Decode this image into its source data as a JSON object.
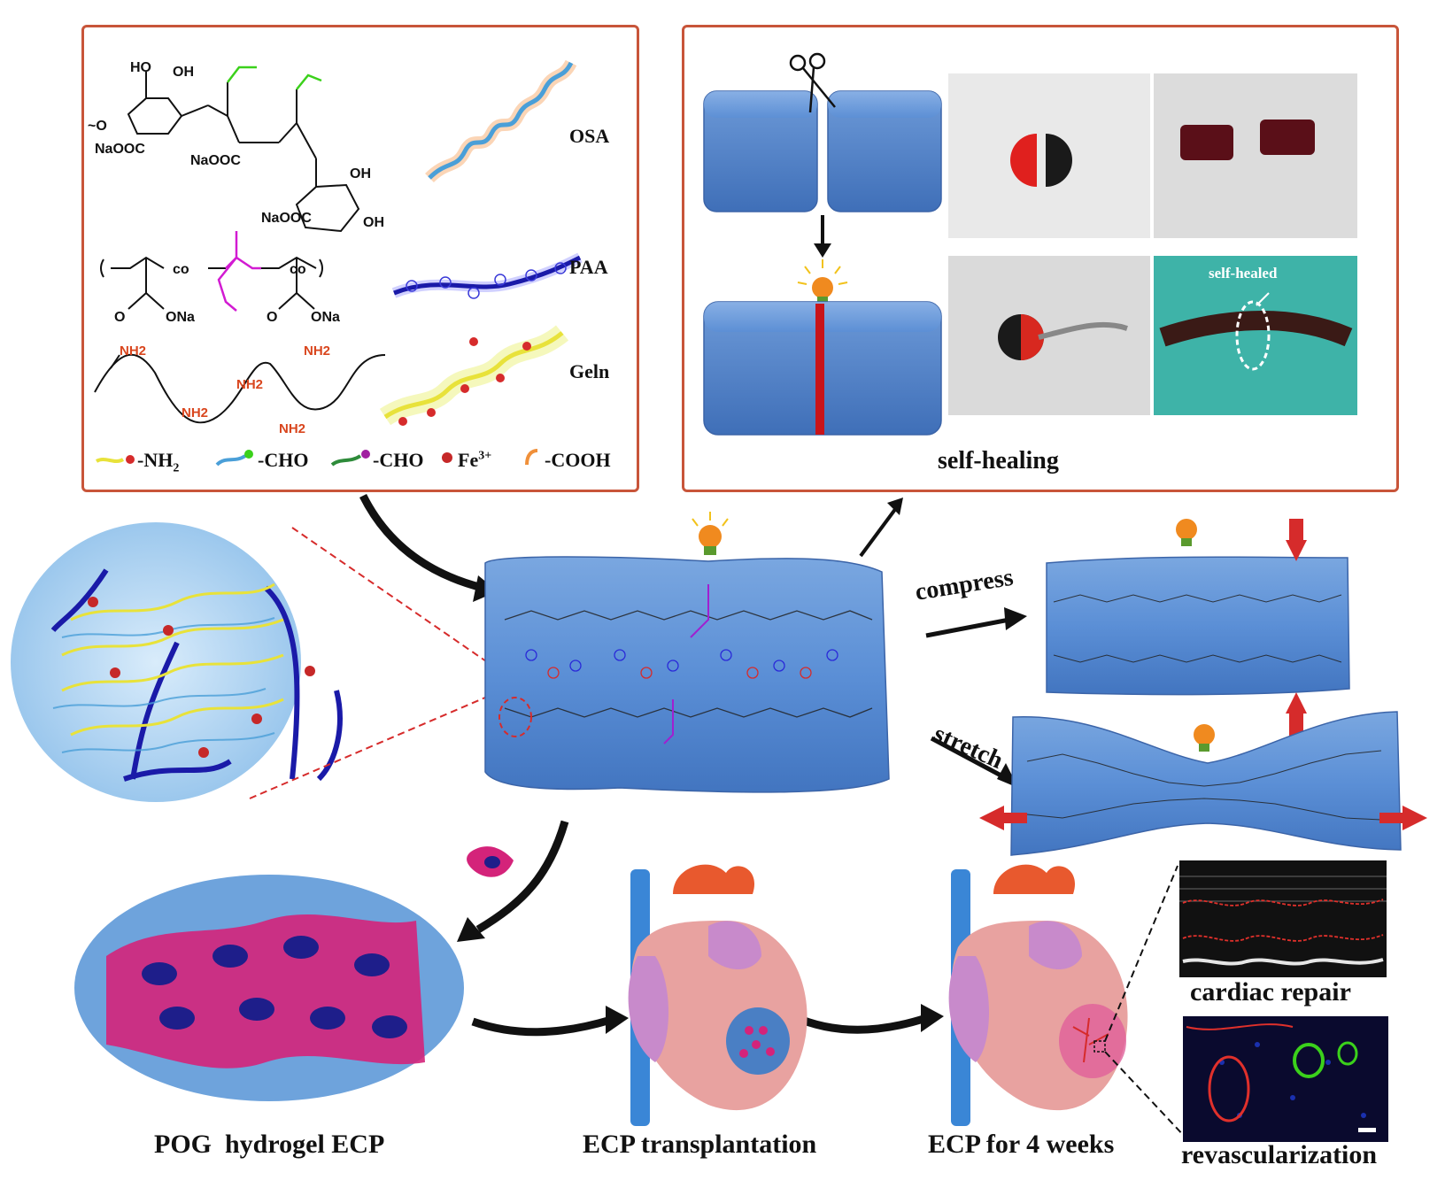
{
  "top_left_panel": {
    "structure_text": {
      "oh1": "HO",
      "oh2": "OH",
      "naooc1": "NaOOC",
      "naooc2": "NaOOC",
      "oh3": "OH",
      "naooc3": "NaOOC",
      "oh4": "OH",
      "o_ring1": "O",
      "o_ring2": "O",
      "o_link": "O",
      "tilde": "~O",
      "co1": "co",
      "co2": "co",
      "ona1": "ONa",
      "ona2": "ONa",
      "o1": "O",
      "o2": "O",
      "o3": "O",
      "nh2": "NH2"
    },
    "labels": {
      "osa": "OSA",
      "paa": "PAA",
      "geln": "Geln"
    },
    "legend": [
      {
        "text": "-NH",
        "sub": "2",
        "color": "#e8e23a"
      },
      {
        "text": "-CHO",
        "sub": "",
        "color": "#4a9fd8"
      },
      {
        "text": "-CHO",
        "sub": "",
        "color": "#2e8b3a"
      },
      {
        "text": "Fe",
        "sup": "3+",
        "color": "#c62828"
      },
      {
        "text": "-COOH",
        "sub": "",
        "color": "#f0903a"
      }
    ]
  },
  "top_right_panel": {
    "caption": "self-healing",
    "photo_annotation": "self-healed"
  },
  "middle": {
    "compress_label": "compress",
    "stretch_label": "stretch"
  },
  "bottom": {
    "pog_label": "POG  hydrogel ECP",
    "transplant_label": "ECP transplantation",
    "ecp4_label": "ECP for 4 weeks",
    "cardiac_label": "cardiac repair",
    "revasc_label": "revascularization"
  },
  "colors": {
    "panel_border": "#c8553a",
    "hydrogel_blue": "#5b8fd6",
    "accent_red": "#d62b2b",
    "osa_blue": "#4a9fd8",
    "paa_navy": "#1a1aa8",
    "geln_yellow": "#e8e23a",
    "cell_magenta": "#d4237a"
  }
}
